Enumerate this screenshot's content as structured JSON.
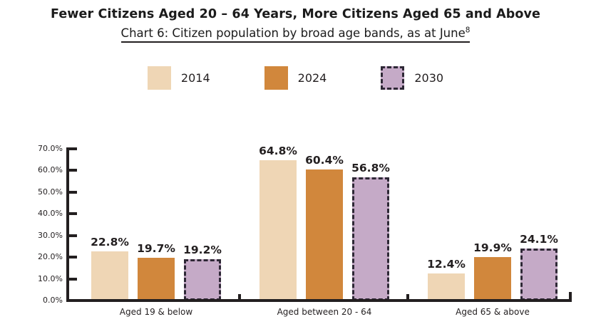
{
  "page": {
    "title": "Fewer Citizens Aged 20 – 64 Years, More Citizens Aged 65 and Above",
    "subtitle": "Chart 6: Citizen population by broad age bands, as at June",
    "subtitle_superscript": "8"
  },
  "legend": {
    "items": [
      {
        "label": "2014",
        "color": "#efd6b5",
        "dashed": false
      },
      {
        "label": "2024",
        "color": "#d1873c",
        "dashed": false
      },
      {
        "label": "2030",
        "color": "#c5aac7",
        "dashed": true
      }
    ]
  },
  "colors": {
    "bar_2014": "#efd6b5",
    "bar_2024": "#d1873c",
    "bar_2030": "#c5aac7",
    "dashed_border": "#2e2836",
    "axis_and_text": "#231f20"
  },
  "chart_data": {
    "type": "bar",
    "grouped": true,
    "title": "Fewer Citizens Aged 20 – 64 Years, More Citizens Aged 65 and Above",
    "subtitle": "Chart 6: Citizen population by broad age bands, as at June⁸",
    "categories": [
      "Aged 19 & below",
      "Aged between 20 - 64",
      "Aged 65 & above"
    ],
    "series": [
      {
        "name": "2014",
        "color": "#efd6b5",
        "dashed": false,
        "values": [
          22.8,
          64.8,
          12.4
        ]
      },
      {
        "name": "2024",
        "color": "#d1873c",
        "dashed": false,
        "values": [
          19.7,
          60.4,
          19.9
        ]
      },
      {
        "name": "2030",
        "color": "#c5aac7",
        "dashed": true,
        "values": [
          19.2,
          56.8,
          24.1
        ]
      }
    ],
    "data_labels": [
      [
        "22.8%",
        "64.8%",
        "12.4%"
      ],
      [
        "19.7%",
        "60.4%",
        "19.9%"
      ],
      [
        "19.2%",
        "56.8%",
        "24.1%"
      ]
    ],
    "xlabel": "",
    "ylabel": "",
    "ylim": [
      0,
      70
    ],
    "ytick_step": 10,
    "ytick_labels": [
      "0.0%",
      "10.0%",
      "20.0%",
      "30.0%",
      "40.0%",
      "50.0%",
      "60.0%",
      "70.0%"
    ],
    "grid": false,
    "legend_position": "top",
    "legend_entries": [
      "2014",
      "2024",
      "2030"
    ]
  }
}
